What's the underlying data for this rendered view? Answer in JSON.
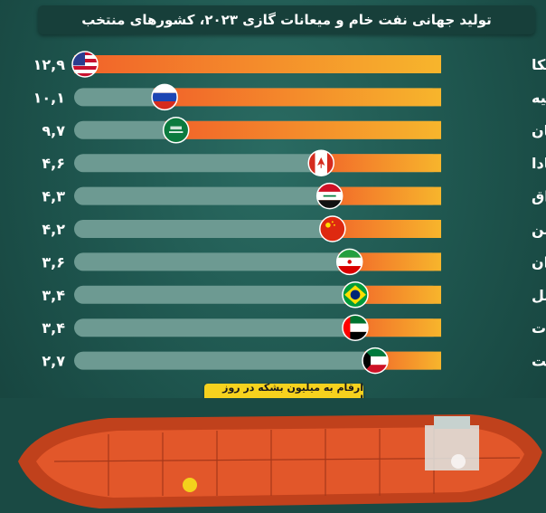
{
  "title": "تولید جهانی نفت خام و میعانات گازی ۲۰۲۳، کشورهای منتخب",
  "note": "ارقام به میلیون بشکه در روز است",
  "colors": {
    "track": "#6d9a92",
    "bar_start": "#f7b52c",
    "bar_end": "#f1622a",
    "label": "#ffffff",
    "value": "#ffffff"
  },
  "chart_data": {
    "type": "bar",
    "orientation": "horizontal",
    "xlim": [
      0,
      12.9
    ],
    "categories": [
      "آمریکا",
      "روسیه",
      "عربستان",
      "کانادا",
      "عراق",
      "چین",
      "ایران",
      "برزیل",
      "امارات",
      "کویت"
    ],
    "values": [
      12.9,
      10.1,
      9.7,
      4.6,
      4.3,
      4.2,
      3.6,
      3.4,
      3.4,
      2.7
    ],
    "value_labels": [
      "۱۲,۹",
      "۱۰,۱",
      "۹,۷",
      "۴,۶",
      "۴,۳",
      "۴,۲",
      "۳,۶",
      "۳,۴",
      "۳,۴",
      "۲,۷"
    ],
    "flags": [
      "usa-flag",
      "russia-flag",
      "saudi-flag",
      "canada-flag",
      "iraq-flag",
      "china-flag",
      "iran-flag",
      "brazil-flag",
      "uae-flag",
      "kuwait-flag"
    ]
  }
}
